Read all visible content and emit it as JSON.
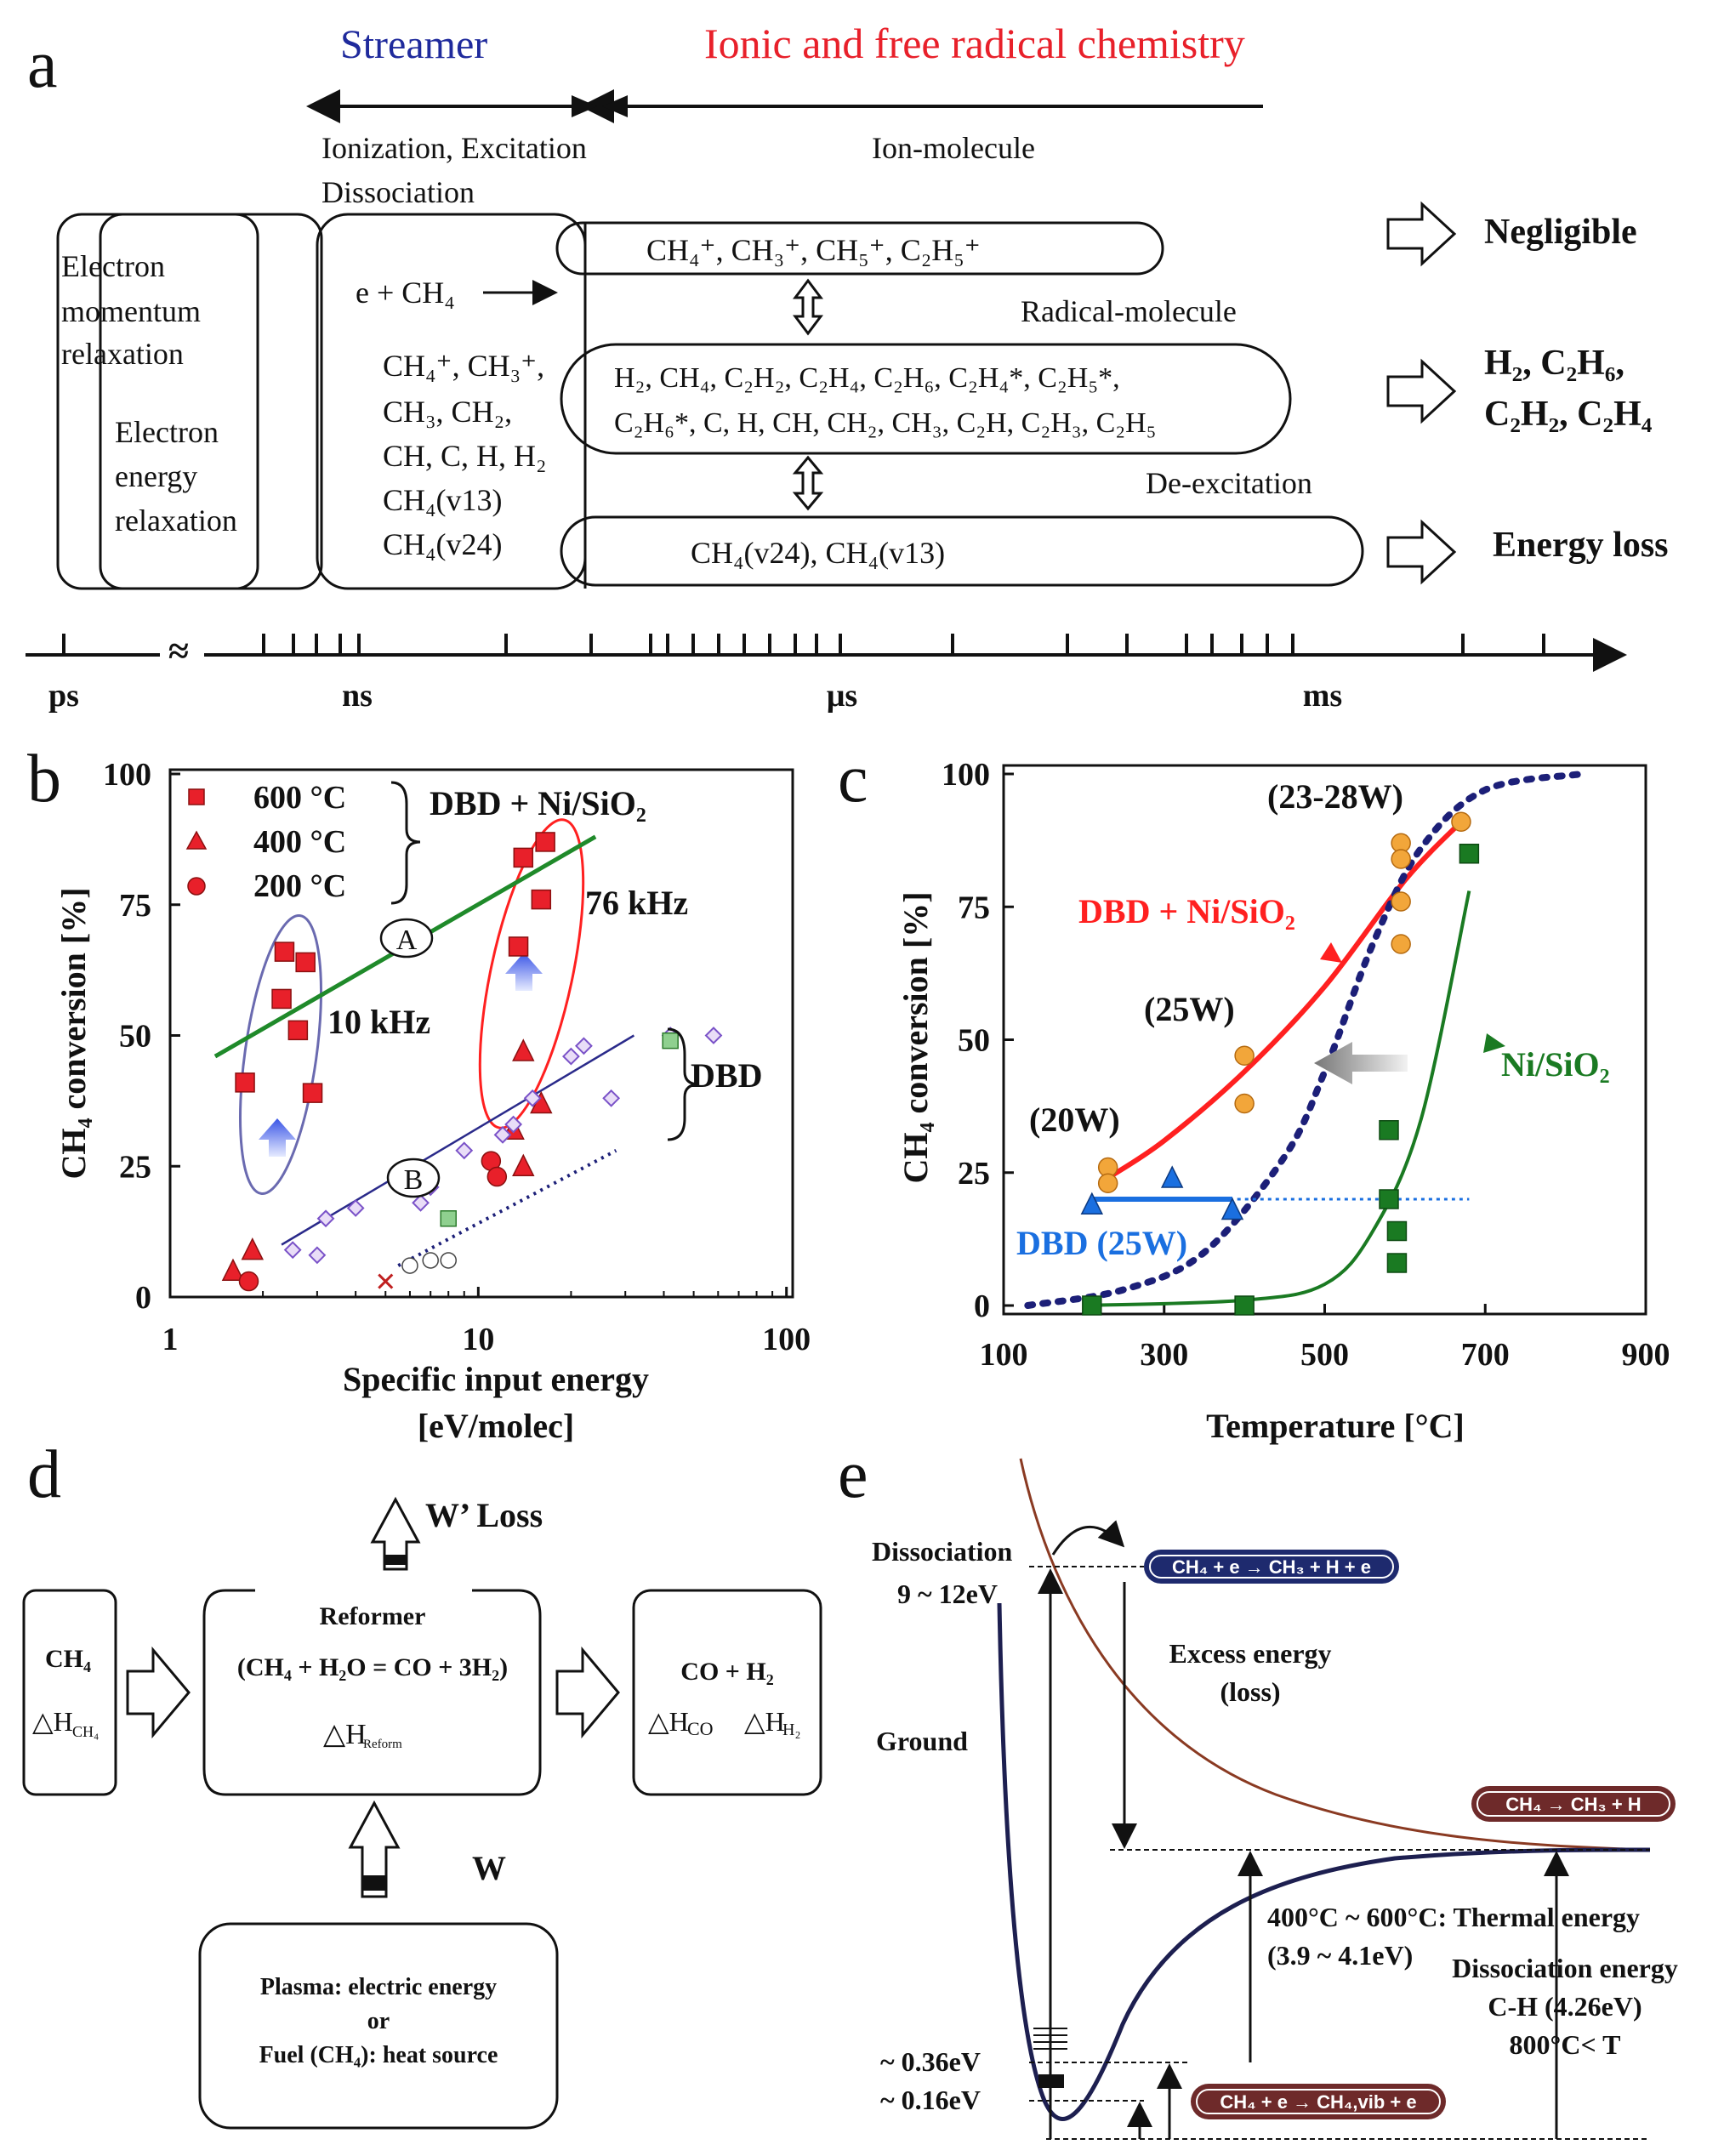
{
  "colors": {
    "blue_title": "#1f2a9c",
    "red_title": "#e8202a",
    "dbd_ni_red": "#ff2020",
    "dbd_blue": "#1a6fe0",
    "ni_green": "#1a7a22",
    "dash_navy": "#1c1f78",
    "marker_orange": "#f2a63a",
    "green_line_b": "#1f8a2a",
    "brown_curve": "#8a3a22",
    "navy_curve": "#1d1f50",
    "pill_navy": "#1e2a6e",
    "pill_maroon": "#6e2a2a"
  },
  "panel_a": {
    "letter": "a",
    "streamer": "Streamer",
    "ionic": "Ionic and free radical chemistry",
    "ionization_line1": "Ionization, Excitation",
    "ionization_line2": "Dissociation",
    "ion_molecule": "Ion-molecule",
    "radical_molecule": "Radical-molecule",
    "de_excitation": "De-excitation",
    "electron_momentum": [
      "Electron",
      "momentum",
      "relaxation"
    ],
    "electron_energy": [
      "Electron",
      "energy",
      "relaxation"
    ],
    "e_ch4": "e + CH₄",
    "species_left": [
      "CH₄⁺, CH₃⁺,",
      "CH₃, CH₂,",
      "CH, C, H, H₂",
      "CH₄(v13)",
      "CH₄(v24)"
    ],
    "ion_species": "CH₄⁺, CH₃⁺, CH₅⁺, C₂H₅⁺",
    "radical_line1": "H₂, CH₄, C₂H₂, C₂H₄, C₂H₆, C₂H₄*, C₂H₅*,",
    "radical_line2": "C₂H₆*, C, H, CH, CH₂, CH₃, C₂H, C₂H₃, C₂H₅",
    "vib_species": "CH₄(v24), CH₄(v13)",
    "result_negligible": "Negligible",
    "result_products_line1": "H₂, C₂H₆,",
    "result_products_line2": "C₂H₂, C₂H₄",
    "result_energy_loss": "Energy loss",
    "axis_break": "≈",
    "time_labels": [
      "ps",
      "ns",
      "μs",
      "ms"
    ]
  },
  "panel_b": {
    "letter": "b",
    "chart_data": {
      "type": "scatter",
      "title": "",
      "xlabel_line1": "Specific input energy",
      "xlabel_line2": "[eV/molec]",
      "ylabel": "CH₄ conversion [%]",
      "xscale": "log",
      "xlim": [
        1,
        100
      ],
      "ylim": [
        0,
        100
      ],
      "xticks": [
        1,
        10,
        100
      ],
      "xtick_labels": [
        "1",
        "10",
        "100"
      ],
      "yticks": [
        0,
        25,
        50,
        75,
        100
      ],
      "ytick_labels": [
        "0",
        "25",
        "50",
        "75",
        "100"
      ],
      "legend": [
        {
          "marker": "square",
          "label": "600 °C"
        },
        {
          "marker": "triangle",
          "label": "400 °C"
        },
        {
          "marker": "circle",
          "label": "200 °C"
        }
      ],
      "legend_group_label": "DBD + Ni/SiO₂",
      "dbd_label": "DBD",
      "annotation_A": "A",
      "annotation_B": "B",
      "freq_10": "10 kHz",
      "freq_76": "76 kHz",
      "series": [
        {
          "name": "600 °C",
          "marker": "square",
          "points": [
            [
              1.75,
              41
            ],
            [
              2.3,
              57
            ],
            [
              2.35,
              66
            ],
            [
              2.6,
              51
            ],
            [
              2.75,
              64
            ],
            [
              2.9,
              39
            ],
            [
              13.5,
              67
            ],
            [
              14,
              84
            ],
            [
              16,
              76
            ],
            [
              16.5,
              87
            ]
          ]
        },
        {
          "name": "400 °C",
          "marker": "triangle",
          "points": [
            [
              1.6,
              5
            ],
            [
              1.85,
              9
            ],
            [
              14,
              47
            ],
            [
              16,
              37
            ],
            [
              14,
              25
            ],
            [
              13,
              32
            ]
          ]
        },
        {
          "name": "200 °C",
          "marker": "circle",
          "points": [
            [
              1.8,
              3
            ],
            [
              11,
              26
            ],
            [
              11.5,
              23
            ]
          ]
        },
        {
          "name": "DBD",
          "marker": "diamond",
          "points": [
            [
              2.5,
              9
            ],
            [
              3,
              8
            ],
            [
              3.2,
              15
            ],
            [
              4,
              17
            ],
            [
              6.5,
              18
            ],
            [
              7,
              21
            ],
            [
              9,
              28
            ],
            [
              12,
              31
            ],
            [
              13,
              33
            ],
            [
              15,
              38
            ],
            [
              20,
              46
            ],
            [
              22,
              48
            ],
            [
              27,
              38
            ],
            [
              42,
              50
            ],
            [
              58,
              50
            ]
          ]
        }
      ],
      "trend_lines": [
        {
          "name": "A",
          "points": [
            [
              1.4,
              46
            ],
            [
              24,
              88
            ]
          ]
        },
        {
          "name": "B",
          "points": [
            [
              2.3,
              10
            ],
            [
              32,
              50
            ]
          ]
        },
        {
          "name": "DBD-dotted",
          "points": [
            [
              5.5,
              6
            ],
            [
              28,
              28
            ]
          ]
        }
      ]
    }
  },
  "panel_c": {
    "letter": "c",
    "chart_data": {
      "type": "line",
      "title": "",
      "xlabel": "Temperature [°C]",
      "ylabel": "CH₄ conversion [%]",
      "xlim": [
        100,
        900
      ],
      "ylim": [
        0,
        100
      ],
      "xticks": [
        100,
        300,
        500,
        700,
        900
      ],
      "xtick_labels": [
        "100",
        "300",
        "500",
        "700",
        "900"
      ],
      "yticks": [
        0,
        25,
        50,
        75,
        100
      ],
      "ytick_labels": [
        "0",
        "25",
        "50",
        "75",
        "100"
      ],
      "labels": {
        "dbd_ni": "DBD + Ni/SiO₂",
        "ni": "Ni/SiO₂",
        "dbd": "DBD (25W)",
        "w20": "(20W)",
        "w25": "(25W)",
        "w2328": "(23-28W)"
      },
      "series": [
        {
          "name": "DBD + Ni/SiO₂",
          "marker": "circle",
          "points": [
            [
              230,
              26
            ],
            [
              230,
              23
            ],
            [
              400,
              47
            ],
            [
              400,
              38
            ],
            [
              595,
              87
            ],
            [
              595,
              84
            ],
            [
              595,
              76
            ],
            [
              595,
              68
            ],
            [
              670,
              91
            ]
          ]
        },
        {
          "name": "Ni/SiO₂",
          "marker": "square",
          "points": [
            [
              210,
              0
            ],
            [
              400,
              0
            ],
            [
              580,
              33
            ],
            [
              580,
              20
            ],
            [
              590,
              14
            ],
            [
              590,
              8
            ],
            [
              680,
              85
            ]
          ]
        },
        {
          "name": "DBD (25W)",
          "marker": "triangle",
          "points": [
            [
              210,
              19
            ],
            [
              310,
              24
            ],
            [
              385,
              18
            ]
          ]
        }
      ],
      "fits": [
        {
          "name": "DBD + Ni/SiO₂ fit",
          "points": [
            [
              230,
              24
            ],
            [
              300,
              31
            ],
            [
              400,
              44
            ],
            [
              500,
              60
            ],
            [
              600,
              80
            ],
            [
              670,
              91
            ]
          ]
        },
        {
          "name": "Ni/SiO₂ fit",
          "points": [
            [
              200,
              0
            ],
            [
              400,
              1
            ],
            [
              500,
              4
            ],
            [
              560,
              14
            ],
            [
              620,
              35
            ],
            [
              680,
              78
            ]
          ]
        },
        {
          "name": "equilibrium (dotted)",
          "points": [
            [
              130,
              0
            ],
            [
              250,
              3
            ],
            [
              350,
              10
            ],
            [
              450,
              28
            ],
            [
              500,
              44
            ],
            [
              560,
              68
            ],
            [
              620,
              86
            ],
            [
              700,
              97
            ],
            [
              820,
              100
            ]
          ]
        },
        {
          "name": "DBD (25W) level",
          "points": [
            [
              210,
              20
            ],
            [
              680,
              20
            ]
          ]
        }
      ]
    }
  },
  "panel_d": {
    "letter": "d",
    "w_loss": "W’ Loss",
    "w": "W",
    "ch4": "CH₄",
    "dh_ch4": "△H",
    "dh_ch4_sub": "CH₄",
    "reformer": "Reformer",
    "reaction": "(CH₄ + H₂O = CO + 3H₂)",
    "dh_reform": "△H",
    "dh_reform_sub": "Reform",
    "co_h2": "CO + H₂",
    "dh_co": "△H",
    "dh_co_sub": "CO",
    "dh_h2": "△H",
    "dh_h2_sub": "H₂",
    "source_line1": "Plasma: electric energy",
    "source_line2": "or",
    "source_line3": "Fuel (CH₄): heat source"
  },
  "panel_e": {
    "letter": "e",
    "dissociation": "Dissociation",
    "dissociation_range": "9 ~ 12eV",
    "reaction_top": "CH₄ + e → CH₃ + H + e",
    "excess_line1": "Excess energy",
    "excess_line2": "(loss)",
    "ground": "Ground",
    "reaction_thermal": "CH₄ → CH₃ + H",
    "thermal_line1": "400°C ~ 600°C: Thermal energy",
    "thermal_line2": "(3.9 ~ 4.1eV)",
    "diss_energy_line1": "Dissociation energy",
    "diss_energy_line2": "C-H (4.26eV)",
    "diss_energy_line3": "800°C< T",
    "level_036": "~ 0.36eV",
    "level_016": "~ 0.16eV",
    "reaction_vib": "CH₄ + e → CH₄,vib + e"
  }
}
